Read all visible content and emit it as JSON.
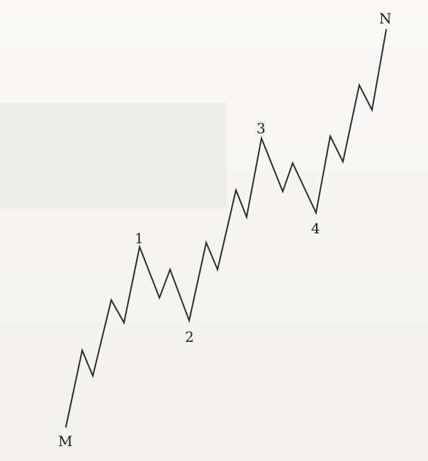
{
  "diagram": {
    "labels": {
      "start": "M",
      "wave1": "1",
      "wave2": "2",
      "wave3": "3",
      "wave4": "4",
      "end": "N"
    },
    "colors": {
      "line": "#2a2a2a",
      "text": "#1f1f1f",
      "background": "#f7f6f3"
    }
  }
}
